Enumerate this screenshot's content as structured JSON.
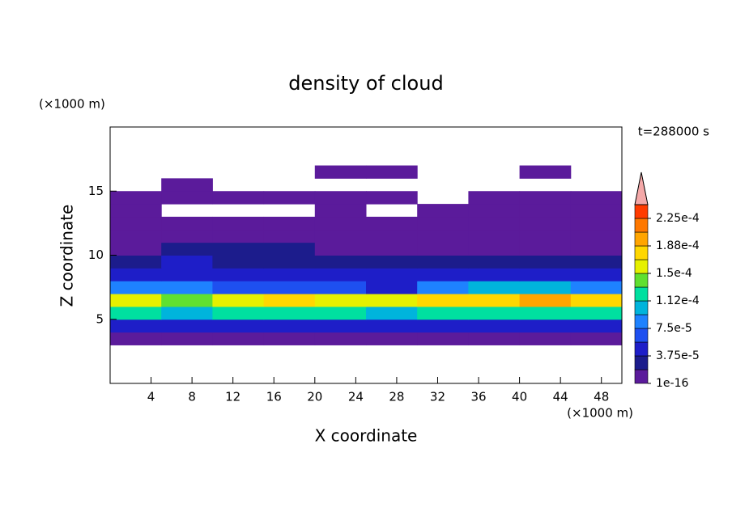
{
  "chart_data": {
    "type": "heatmap",
    "title": "density of cloud",
    "x_label": "X coordinate",
    "y_label": "Z coordinate",
    "x_unit": "(×1000 m)",
    "y_unit": "(×1000 m)",
    "annotation": "t=288000 s",
    "xlim": [
      0,
      50
    ],
    "ylim": [
      0,
      20
    ],
    "xticks": [
      4,
      8,
      12,
      16,
      20,
      24,
      28,
      32,
      36,
      40,
      44,
      48
    ],
    "yticks": [
      5,
      10,
      15
    ],
    "x_edges": [
      0,
      5,
      10,
      15,
      20,
      25,
      30,
      35,
      40,
      45,
      50
    ],
    "y_edges": [
      3,
      4,
      5,
      6,
      7,
      8,
      9,
      10,
      11,
      12,
      13,
      14,
      15,
      16,
      17
    ],
    "values": [
      [
        1e-05,
        1e-05,
        1e-05,
        1e-05,
        1e-05,
        1e-05,
        1e-05,
        1e-05,
        1e-05,
        1e-05
      ],
      [
        5e-05,
        4e-05,
        5e-05,
        5e-05,
        5e-05,
        5e-05,
        4e-05,
        5e-05,
        5e-05,
        5e-05
      ],
      [
        0.00012,
        0.0001,
        0.00012,
        0.00013,
        0.00012,
        0.00011,
        0.00012,
        0.00013,
        0.00012,
        0.00012
      ],
      [
        0.00016,
        0.00014,
        0.00016,
        0.00017,
        0.00016,
        0.00015,
        0.00017,
        0.00018,
        0.00019,
        0.00017
      ],
      [
        9e-05,
        8e-05,
        6e-05,
        7e-05,
        6e-05,
        5e-05,
        9e-05,
        0.0001,
        0.0001,
        9e-05
      ],
      [
        4e-05,
        5e-05,
        4e-05,
        4e-05,
        4e-05,
        4e-05,
        4e-05,
        4e-05,
        4e-05,
        4e-05
      ],
      [
        2.5e-05,
        4e-05,
        3e-05,
        2.5e-05,
        3e-05,
        2.5e-05,
        2.5e-05,
        2.5e-05,
        2e-05,
        2e-05
      ],
      [
        1.5e-05,
        2.5e-05,
        2e-05,
        2e-05,
        1.5e-05,
        1.5e-05,
        1.5e-05,
        1e-05,
        1e-05,
        1e-05
      ],
      [
        1e-05,
        1.5e-05,
        1e-05,
        1e-05,
        1e-05,
        1e-05,
        1e-05,
        5e-06,
        5e-06,
        5e-06
      ],
      [
        5e-06,
        5e-06,
        5e-06,
        5e-06,
        5e-06,
        5e-06,
        5e-06,
        5e-06,
        5e-06,
        5e-06
      ],
      [
        5e-06,
        null,
        null,
        null,
        5e-06,
        null,
        5e-06,
        5e-06,
        5e-06,
        5e-06
      ],
      [
        5e-06,
        5e-06,
        5e-06,
        5e-06,
        5e-06,
        5e-06,
        null,
        5e-06,
        5e-06,
        5e-06
      ],
      [
        null,
        5e-06,
        null,
        null,
        null,
        null,
        null,
        null,
        null,
        null
      ],
      [
        null,
        null,
        null,
        null,
        5e-06,
        5e-06,
        null,
        null,
        5e-06,
        null
      ]
    ],
    "levels": [
      1e-16,
      1.875e-05,
      3.75e-05,
      5.625e-05,
      7.5e-05,
      9.375e-05,
      0.0001125,
      0.00013125,
      0.00015,
      0.00016875,
      0.0001875,
      0.00020625,
      0.000225,
      0.00024375
    ],
    "colors": [
      "#5b1b9b",
      "#1c1c8c",
      "#1e1ec8",
      "#1e50f0",
      "#1e82ff",
      "#00b4dc",
      "#00e0a0",
      "#60e030",
      "#e6f000",
      "#ffd700",
      "#ffa500",
      "#ff7800",
      "#ff3c00"
    ],
    "extend_color": "#f4a8a8",
    "colorbar_ticks": [
      1e-16,
      {
        "value": 3.75e-05,
        "label": "3.75e-5"
      },
      {
        "value": 7.5e-05,
        "label": "7.5e-5"
      },
      {
        "value": 0.0001125,
        "label": "1.12e-4"
      },
      {
        "value": 0.00015,
        "label": "1.5e-4"
      },
      {
        "value": 0.0001875,
        "label": "1.88e-4"
      },
      {
        "value": 0.000225,
        "label": "2.25e-4"
      }
    ]
  }
}
